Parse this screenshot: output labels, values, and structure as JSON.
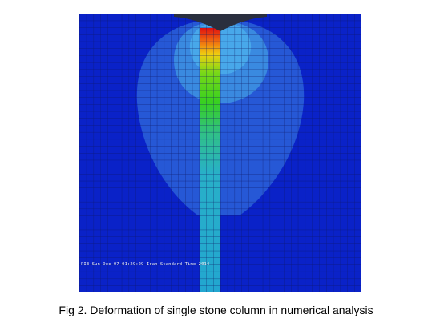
{
  "figure": {
    "timestamp_label": "PI3    Sun Dec 07 01:29:29 Iran Standard Time 2014",
    "caption": "Fig 2. Deformation of single stone column in numerical analysis"
  },
  "contour_colors": {
    "background": "#0a22c8",
    "indenter": "#2a2f3e",
    "zone_outer": "#2658d6",
    "zone_mid": "#3a8ae0",
    "zone_inner": "#48a8ea",
    "mesh_lines": "#0c1560",
    "column_stops": [
      "#e01010",
      "#f06a10",
      "#f0d010",
      "#78d818",
      "#38d020",
      "#30c088",
      "#28b0c8",
      "#22a6d0"
    ]
  }
}
